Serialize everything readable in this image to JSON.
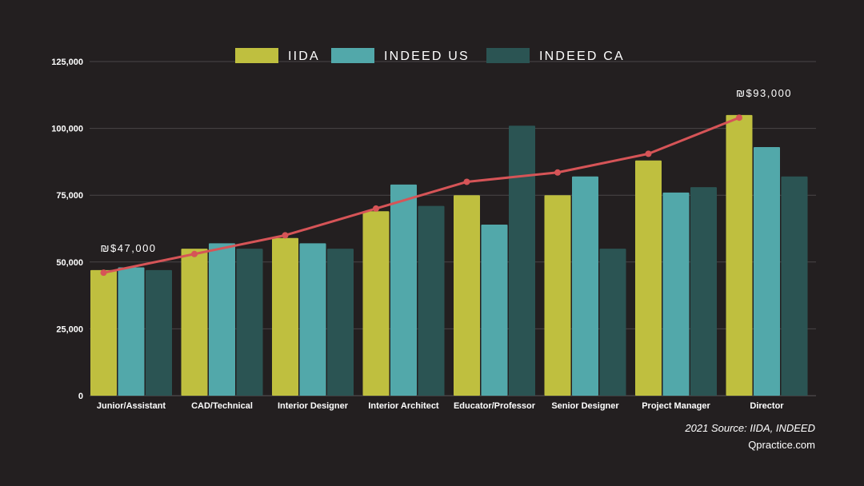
{
  "chart_data": {
    "type": "bar",
    "title": "",
    "xlabel": "",
    "ylabel": "",
    "ylim": [
      0,
      125000
    ],
    "yticks": [
      0,
      25000,
      50000,
      75000,
      100000,
      125000
    ],
    "ytick_labels": [
      "0",
      "25,000",
      "50,000",
      "75,000",
      "100,000",
      "125,000"
    ],
    "grid": true,
    "legend": "top-center",
    "categories": [
      "Junior/Assistant",
      "CAD/Technical",
      "Interior Designer",
      "Interior Architect",
      "Educator/Professor",
      "Senior Designer",
      "Project Manager",
      "Director"
    ],
    "series": [
      {
        "name": "IIDA",
        "color": "#bfbf3f",
        "values": [
          47000,
          55000,
          59000,
          69000,
          75000,
          75000,
          88000,
          105000
        ]
      },
      {
        "name": "INDEED US",
        "color": "#52a8aa",
        "values": [
          48000,
          57000,
          57000,
          79000,
          64000,
          82000,
          76000,
          93000
        ]
      },
      {
        "name": "INDEED CA",
        "color": "#2b5453",
        "values": [
          47000,
          55000,
          55000,
          71000,
          101000,
          55000,
          78000,
          82000
        ]
      }
    ],
    "trend_line": {
      "color": "#d65457",
      "values": [
        46000,
        53000,
        60000,
        70000,
        80000,
        83500,
        90500,
        104000
      ]
    },
    "annotations": [
      {
        "text": "₪$47,000",
        "category_index": 0
      },
      {
        "text": "₪$93,000",
        "category_index": 7
      }
    ],
    "source_text": "2021 Source: IIDA, INDEED",
    "site_text": "Qpractice.com"
  }
}
